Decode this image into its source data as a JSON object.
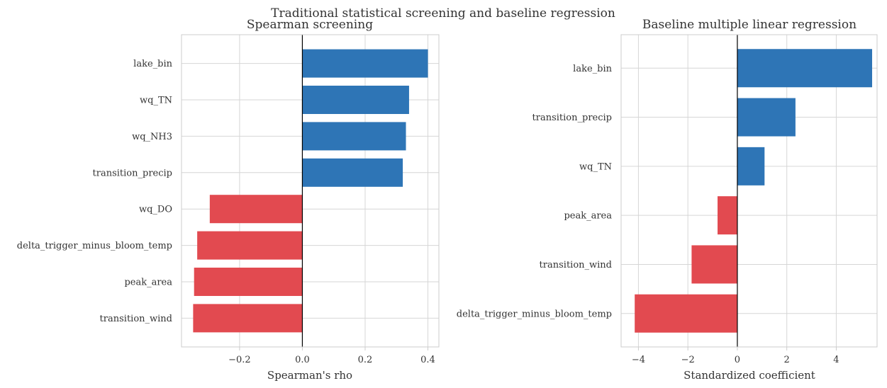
{
  "figure": {
    "suptitle": "Traditional statistical screening and baseline regression"
  },
  "colors": {
    "positive": "#2e75b6",
    "negative": "#e24a50"
  },
  "chart_data": [
    {
      "type": "bar",
      "orientation": "horizontal",
      "title": "Spearman screening",
      "xlabel": "Spearman's rho",
      "ylabel": "",
      "categories": [
        "lake_bin",
        "wq_TN",
        "wq_NH3",
        "transition_precip",
        "wq_DO",
        "delta_trigger_minus_bloom_temp",
        "peak_area",
        "transition_wind"
      ],
      "values": [
        0.4,
        0.34,
        0.33,
        0.32,
        -0.295,
        -0.335,
        -0.345,
        -0.348
      ],
      "xlim": [
        -0.385,
        0.435
      ],
      "xticks": [
        -0.2,
        0.0,
        0.2,
        0.4
      ],
      "xtick_labels": [
        "−0.2",
        "0.0",
        "0.2",
        "0.4"
      ],
      "grid": true
    },
    {
      "type": "bar",
      "orientation": "horizontal",
      "title": "Baseline multiple linear regression",
      "xlabel": "Standardized coefficient",
      "ylabel": "",
      "categories": [
        "lake_bin",
        "transition_precip",
        "wq_TN",
        "peak_area",
        "transition_wind",
        "delta_trigger_minus_bloom_temp"
      ],
      "values": [
        5.45,
        2.35,
        1.1,
        -0.8,
        -1.85,
        -4.15
      ],
      "xlim": [
        -4.7,
        5.65
      ],
      "xticks": [
        -4,
        -2,
        0,
        2,
        4
      ],
      "xtick_labels": [
        "−4",
        "−2",
        "0",
        "2",
        "4"
      ],
      "grid": true
    }
  ]
}
